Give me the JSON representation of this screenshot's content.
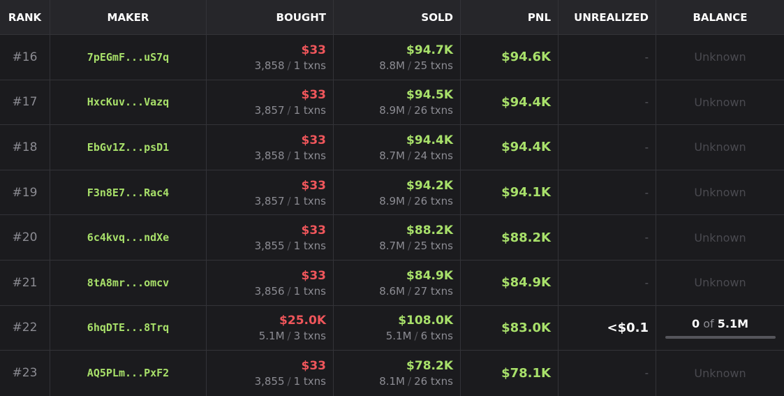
{
  "headers": {
    "rank": "RANK",
    "maker": "MAKER",
    "bought": "BOUGHT",
    "sold": "SOLD",
    "pnl": "PNL",
    "unrealized": "UNREALIZED",
    "balance": "BALANCE"
  },
  "colors": {
    "green": "#a8e06a",
    "red": "#f0565b",
    "header_bg": "#26262a",
    "row_bg": "#1b1b1e"
  },
  "rows": [
    {
      "rank": "#16",
      "maker": "7pEGmF...uS7q",
      "bought_amount": "$33",
      "bought_tokens": "3,858",
      "bought_txns": "1 txns",
      "sold_amount": "$94.7K",
      "sold_tokens": "8.8M",
      "sold_txns": "25 txns",
      "pnl": "$94.6K",
      "unrealized": "-",
      "balance": "Unknown"
    },
    {
      "rank": "#17",
      "maker": "HxcKuv...Vazq",
      "bought_amount": "$33",
      "bought_tokens": "3,857",
      "bought_txns": "1 txns",
      "sold_amount": "$94.5K",
      "sold_tokens": "8.9M",
      "sold_txns": "26 txns",
      "pnl": "$94.4K",
      "unrealized": "-",
      "balance": "Unknown"
    },
    {
      "rank": "#18",
      "maker": "EbGv1Z...psD1",
      "bought_amount": "$33",
      "bought_tokens": "3,858",
      "bought_txns": "1 txns",
      "sold_amount": "$94.4K",
      "sold_tokens": "8.7M",
      "sold_txns": "24 txns",
      "pnl": "$94.4K",
      "unrealized": "-",
      "balance": "Unknown"
    },
    {
      "rank": "#19",
      "maker": "F3n8E7...Rac4",
      "bought_amount": "$33",
      "bought_tokens": "3,857",
      "bought_txns": "1 txns",
      "sold_amount": "$94.2K",
      "sold_tokens": "8.9M",
      "sold_txns": "26 txns",
      "pnl": "$94.1K",
      "unrealized": "-",
      "balance": "Unknown"
    },
    {
      "rank": "#20",
      "maker": "6c4kvq...ndXe",
      "bought_amount": "$33",
      "bought_tokens": "3,855",
      "bought_txns": "1 txns",
      "sold_amount": "$88.2K",
      "sold_tokens": "8.7M",
      "sold_txns": "25 txns",
      "pnl": "$88.2K",
      "unrealized": "-",
      "balance": "Unknown"
    },
    {
      "rank": "#21",
      "maker": "8tA8mr...omcv",
      "bought_amount": "$33",
      "bought_tokens": "3,856",
      "bought_txns": "1 txns",
      "sold_amount": "$84.9K",
      "sold_tokens": "8.6M",
      "sold_txns": "27 txns",
      "pnl": "$84.9K",
      "unrealized": "-",
      "balance": "Unknown"
    },
    {
      "rank": "#22",
      "maker": "6hqDTE...8Trq",
      "bought_amount": "$25.0K",
      "bought_tokens": "5.1M",
      "bought_txns": "3 txns",
      "sold_amount": "$108.0K",
      "sold_tokens": "5.1M",
      "sold_txns": "6 txns",
      "pnl": "$83.0K",
      "unrealized": "<$0.1",
      "balance_held": "0",
      "balance_of": "of",
      "balance_total": "5.1M",
      "balance_fraction": 0
    },
    {
      "rank": "#23",
      "maker": "AQ5PLm...PxF2",
      "bought_amount": "$33",
      "bought_tokens": "3,855",
      "bought_txns": "1 txns",
      "sold_amount": "$78.2K",
      "sold_tokens": "8.1M",
      "sold_txns": "26 txns",
      "pnl": "$78.1K",
      "unrealized": "-",
      "balance": "Unknown"
    }
  ]
}
